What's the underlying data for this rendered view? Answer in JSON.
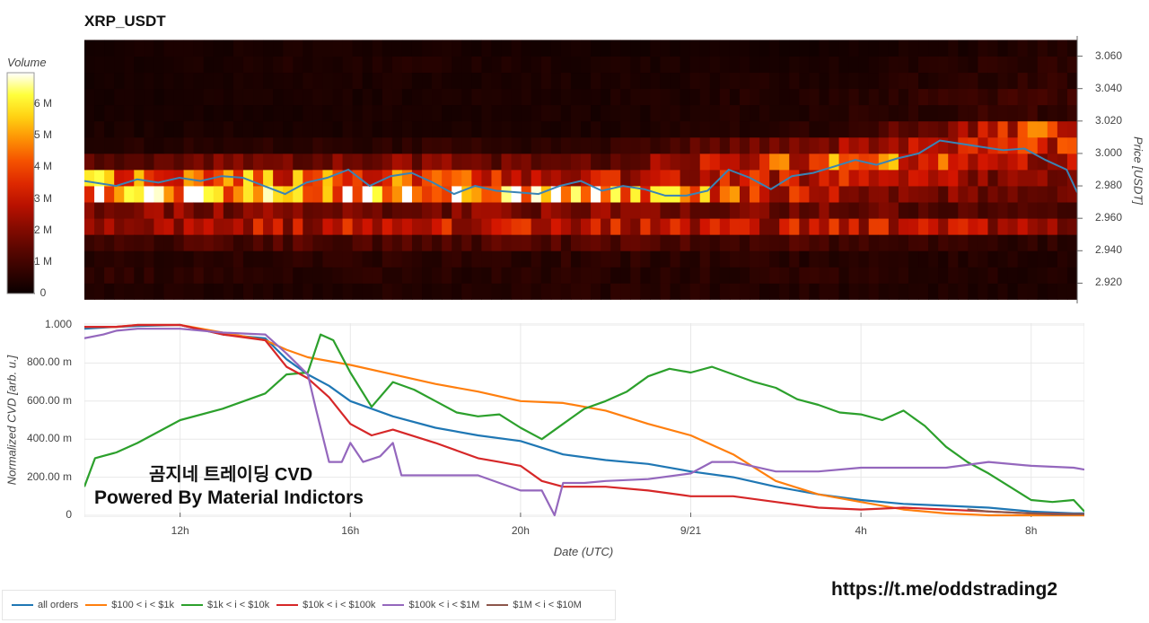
{
  "title": "XRP_USDT",
  "colorbar": {
    "title": "Volume",
    "ticks": [
      "0",
      "1 M",
      "2 M",
      "3 M",
      "4 M",
      "5 M",
      "6 M"
    ],
    "tick_values": [
      0,
      1,
      2,
      3,
      4,
      5,
      6
    ],
    "max": 7
  },
  "watermark": {
    "line1": "곰지네 트레이딩 CVD",
    "line2": "Powered By Material Indictors"
  },
  "url_text": "https://t.me/oddstrading2",
  "colors": {
    "price_line": "#3a84b5",
    "all_orders": "#1f77b4",
    "b100_1k": "#ff7f0e",
    "b1k_10k": "#2ca02c",
    "b10k_100k": "#d62728",
    "b100k_1m": "#9467bd",
    "b1m_10m": "#8c564b"
  },
  "chart_data": [
    {
      "type": "heatmap",
      "title": "XRP_USDT",
      "ylabel": "Price [USDT]",
      "ylim": [
        2.9075,
        3.0725
      ],
      "yticks": [
        2.92,
        2.94,
        2.96,
        2.98,
        3.0,
        3.02,
        3.04,
        3.06
      ],
      "ytick_labels": [
        "2.920",
        "2.940",
        "2.960",
        "2.980",
        "3.000",
        "3.020",
        "3.040",
        "3.060"
      ],
      "colorbar_label": "Volume",
      "colorbar_range": [
        0,
        7000000
      ],
      "price_bins": [
        2.915,
        2.925,
        2.935,
        2.945,
        2.955,
        2.965,
        2.975,
        2.985,
        2.995,
        3.005,
        3.015,
        3.025,
        3.035,
        3.045,
        3.055,
        3.065
      ],
      "time_columns": 100,
      "time_range_hours": [
        9.75,
        33.25
      ],
      "approx_volume_profile_M": [
        {
          "time_hours": 10,
          "by_bin": [
            0.4,
            0.6,
            0.5,
            1.0,
            2.6,
            2.2,
            5.2,
            4.6,
            1.6,
            0.4,
            0.3,
            0.2,
            0.2,
            0.2,
            0.2,
            0.2
          ]
        },
        {
          "time_hours": 16,
          "by_bin": [
            0.4,
            0.5,
            0.6,
            1.2,
            2.8,
            1.8,
            5.8,
            4.2,
            2.0,
            0.6,
            0.3,
            0.3,
            0.3,
            0.3,
            0.4,
            0.3
          ]
        },
        {
          "time_hours": 22,
          "by_bin": [
            0.5,
            0.5,
            0.6,
            1.2,
            2.8,
            1.9,
            5.6,
            2.8,
            1.4,
            0.6,
            0.3,
            0.3,
            0.3,
            0.3,
            0.3,
            0.2
          ]
        },
        {
          "time_hours": 28,
          "by_bin": [
            0.4,
            0.6,
            0.5,
            1.0,
            2.8,
            1.6,
            2.2,
            3.0,
            4.4,
            2.6,
            0.6,
            0.5,
            0.5,
            0.4,
            0.3,
            0.2
          ]
        },
        {
          "time_hours": 32,
          "by_bin": [
            0.3,
            0.4,
            0.4,
            0.6,
            2.6,
            1.0,
            1.6,
            1.8,
            2.6,
            3.2,
            3.6,
            0.8,
            0.8,
            0.6,
            0.6,
            0.4
          ]
        }
      ],
      "price_line": {
        "name": "Price",
        "x": [
          9.75,
          10.5,
          11,
          11.5,
          12,
          12.5,
          13,
          13.5,
          14,
          14.5,
          15,
          15.5,
          16,
          16.5,
          17,
          17.5,
          18,
          18.5,
          19,
          19.5,
          20,
          20.5,
          21,
          21.5,
          22,
          22.5,
          23,
          23.5,
          24,
          24.5,
          25,
          25.5,
          26,
          26.5,
          27,
          27.5,
          28,
          28.5,
          29,
          29.5,
          30,
          30.5,
          31,
          31.5,
          32,
          32.5,
          33,
          33.25
        ],
        "y": [
          2.983,
          2.98,
          2.984,
          2.982,
          2.985,
          2.983,
          2.986,
          2.985,
          2.98,
          2.975,
          2.982,
          2.985,
          2.99,
          2.98,
          2.986,
          2.988,
          2.982,
          2.975,
          2.98,
          2.977,
          2.976,
          2.975,
          2.98,
          2.983,
          2.977,
          2.98,
          2.978,
          2.974,
          2.974,
          2.977,
          2.99,
          2.985,
          2.978,
          2.986,
          2.988,
          2.992,
          2.996,
          2.993,
          2.997,
          3.0,
          3.008,
          3.006,
          3.004,
          3.002,
          3.003,
          2.996,
          2.99,
          2.976
        ]
      }
    },
    {
      "type": "line",
      "xlabel": "Date (UTC)",
      "ylabel": "Normalized CVD [arb. u.]",
      "xlim": [
        9.75,
        33.25
      ],
      "ylim": [
        0,
        1.0
      ],
      "xticks": [
        12,
        16,
        20,
        24,
        28,
        32
      ],
      "xtick_labels": [
        "12h",
        "16h",
        "20h",
        "9/21",
        "4h",
        "8h"
      ],
      "yticks": [
        0,
        0.2,
        0.4,
        0.6,
        0.8,
        1.0
      ],
      "ytick_labels": [
        "0",
        "200.00 m",
        "400.00 m",
        "600.00 m",
        "800.00 m",
        "1.000"
      ],
      "series": [
        {
          "name": "all orders",
          "color_key": "all_orders",
          "x": [
            9.75,
            10.5,
            11,
            12,
            13,
            14,
            14.5,
            15,
            15.5,
            16,
            17,
            18,
            19,
            20,
            21,
            22,
            23,
            24,
            25,
            26,
            27,
            28,
            29,
            30,
            31,
            32,
            33,
            33.25
          ],
          "y": [
            0.98,
            0.99,
            0.995,
            1.0,
            0.95,
            0.93,
            0.82,
            0.74,
            0.68,
            0.6,
            0.52,
            0.46,
            0.42,
            0.39,
            0.32,
            0.29,
            0.27,
            0.23,
            0.2,
            0.15,
            0.11,
            0.08,
            0.06,
            0.05,
            0.04,
            0.02,
            0.01,
            0.01
          ]
        },
        {
          "name": "$100 < i < $1k",
          "color_key": "b100_1k",
          "x": [
            9.75,
            10.5,
            11,
            12,
            13,
            14,
            14.5,
            15,
            16,
            17,
            18,
            19,
            20,
            21,
            22,
            23,
            24,
            25,
            26,
            27,
            28,
            29,
            30,
            31,
            32,
            33,
            33.25
          ],
          "y": [
            0.99,
            0.99,
            1.0,
            1.0,
            0.96,
            0.92,
            0.87,
            0.83,
            0.79,
            0.74,
            0.69,
            0.65,
            0.6,
            0.59,
            0.55,
            0.48,
            0.42,
            0.32,
            0.18,
            0.11,
            0.07,
            0.03,
            0.01,
            0.0,
            0.0,
            0.0,
            0.0
          ]
        },
        {
          "name": "$1k < i < $10k",
          "color_key": "b1k_10k",
          "x": [
            9.75,
            10,
            10.5,
            11,
            12,
            13,
            14,
            14.5,
            15,
            15.3,
            15.6,
            16,
            16.5,
            17,
            17.5,
            18,
            18.5,
            19,
            19.5,
            20,
            20.5,
            21,
            21.5,
            22,
            22.5,
            23,
            23.5,
            24,
            24.5,
            25,
            25.5,
            26,
            26.5,
            27,
            27.5,
            28,
            28.5,
            29,
            29.5,
            30,
            30.5,
            31,
            31.5,
            32,
            32.5,
            33,
            33.25
          ],
          "y": [
            0.15,
            0.3,
            0.33,
            0.38,
            0.5,
            0.56,
            0.64,
            0.74,
            0.75,
            0.95,
            0.92,
            0.75,
            0.57,
            0.7,
            0.66,
            0.6,
            0.54,
            0.52,
            0.53,
            0.46,
            0.4,
            0.48,
            0.56,
            0.6,
            0.65,
            0.73,
            0.77,
            0.75,
            0.78,
            0.74,
            0.7,
            0.67,
            0.61,
            0.58,
            0.54,
            0.53,
            0.5,
            0.55,
            0.47,
            0.36,
            0.28,
            0.22,
            0.15,
            0.08,
            0.07,
            0.08,
            0.02
          ]
        },
        {
          "name": "$10k < i < $100k",
          "color_key": "b10k_100k",
          "x": [
            9.75,
            10.5,
            11,
            12,
            13,
            14,
            14.5,
            15,
            15.5,
            16,
            16.5,
            17,
            18,
            19,
            19.5,
            20,
            20.5,
            21,
            22,
            23,
            24,
            25,
            26,
            27,
            28,
            29,
            30,
            31,
            32,
            33,
            33.25
          ],
          "y": [
            0.99,
            0.99,
            1.0,
            1.0,
            0.95,
            0.92,
            0.78,
            0.72,
            0.62,
            0.48,
            0.42,
            0.45,
            0.38,
            0.3,
            0.28,
            0.26,
            0.18,
            0.15,
            0.15,
            0.13,
            0.1,
            0.1,
            0.07,
            0.04,
            0.03,
            0.04,
            0.03,
            0.02,
            0.01,
            0.005,
            0.005
          ]
        },
        {
          "name": "$100k < i < $1M",
          "color_key": "b100k_1m",
          "x": [
            9.75,
            10.2,
            10.5,
            11,
            12,
            13,
            14,
            14.5,
            15,
            15.2,
            15.5,
            15.8,
            16,
            16.3,
            16.7,
            17,
            17.2,
            18,
            19,
            20,
            20.5,
            20.8,
            21,
            21.5,
            22,
            23,
            24,
            24.5,
            25,
            26,
            27,
            28,
            29,
            30,
            31,
            32,
            33,
            33.25
          ],
          "y": [
            0.93,
            0.95,
            0.97,
            0.98,
            0.98,
            0.96,
            0.95,
            0.85,
            0.74,
            0.55,
            0.28,
            0.28,
            0.38,
            0.28,
            0.31,
            0.38,
            0.21,
            0.21,
            0.21,
            0.13,
            0.13,
            0.0,
            0.17,
            0.17,
            0.18,
            0.19,
            0.22,
            0.28,
            0.28,
            0.23,
            0.23,
            0.25,
            0.25,
            0.25,
            0.28,
            0.26,
            0.25,
            0.24
          ]
        },
        {
          "name": "$1M < i < $10M",
          "color_key": "b1m_10m",
          "x": [
            30.5,
            31,
            31.5,
            32,
            32.5,
            33,
            33.25
          ],
          "y": [
            0.03,
            0.02,
            0.015,
            0.01,
            0.005,
            0.005,
            0.005
          ]
        }
      ]
    }
  ]
}
